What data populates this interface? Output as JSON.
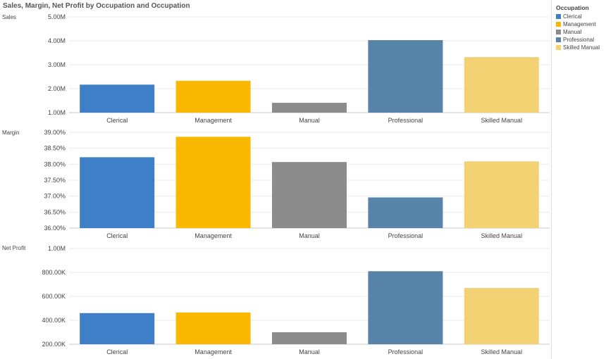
{
  "title": "Sales, Margin, Net Profit by Occupation and Occupation",
  "legend": {
    "title": "Occupation",
    "items": [
      {
        "label": "Clerical",
        "color": "#3f7fc8"
      },
      {
        "label": "Management",
        "color": "#fbb800"
      },
      {
        "label": "Manual",
        "color": "#8c8c8c"
      },
      {
        "label": "Professional",
        "color": "#5884aa"
      },
      {
        "label": "Skilled Manual",
        "color": "#f3d274"
      }
    ]
  },
  "chart_data": [
    {
      "type": "bar",
      "ylabel": "Sales",
      "categories": [
        "Clerical",
        "Management",
        "Manual",
        "Professional",
        "Skilled Manual"
      ],
      "values": [
        2.17,
        2.33,
        1.41,
        4.03,
        3.32
      ],
      "ylim": [
        1.0,
        5.0
      ],
      "yticks": [
        1.0,
        2.0,
        3.0,
        4.0,
        5.0
      ],
      "ytick_labels": [
        "1.00M",
        "2.00M",
        "3.00M",
        "4.00M",
        "5.00M"
      ],
      "grid": true
    },
    {
      "type": "bar",
      "ylabel": "Margin",
      "categories": [
        "Clerical",
        "Management",
        "Manual",
        "Professional",
        "Skilled Manual"
      ],
      "values": [
        38.22,
        38.86,
        38.07,
        36.96,
        38.09
      ],
      "ylim": [
        36.0,
        39.0
      ],
      "yticks": [
        36.0,
        36.5,
        37.0,
        37.5,
        38.0,
        38.5,
        39.0
      ],
      "ytick_labels": [
        "36.00%",
        "36.50%",
        "37.00%",
        "37.50%",
        "38.00%",
        "38.50%",
        "39.00%"
      ],
      "grid": true
    },
    {
      "type": "bar",
      "ylabel": "Net Profit",
      "categories": [
        "Clerical",
        "Management",
        "Manual",
        "Professional",
        "Skilled Manual"
      ],
      "values": [
        460,
        465,
        300,
        810,
        670
      ],
      "ylim": [
        200,
        1000
      ],
      "yticks": [
        200,
        400,
        600,
        800,
        1000
      ],
      "ytick_labels": [
        "200.00K",
        "400.00K",
        "600.00K",
        "800.00K",
        "1.00M"
      ],
      "grid": true
    }
  ]
}
